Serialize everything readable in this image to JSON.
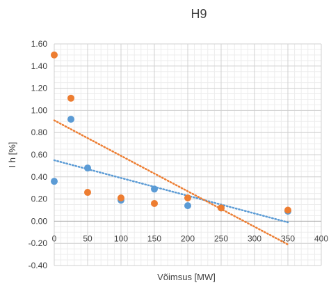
{
  "chart_data": {
    "type": "scatter",
    "title": "H9",
    "xlabel": "Võimsus [MW]",
    "ylabel": "I h [%]",
    "xlim": [
      0,
      400
    ],
    "ylim": [
      -0.4,
      1.6
    ],
    "x_ticks": [
      0,
      50,
      100,
      150,
      200,
      250,
      300,
      350,
      400
    ],
    "x_tick_labels": [
      "0",
      "50",
      "100",
      "150",
      "200",
      "250",
      "300",
      "350",
      "400"
    ],
    "y_ticks": [
      -0.4,
      -0.2,
      0,
      0.2,
      0.4,
      0.6,
      0.8,
      1.0,
      1.2,
      1.4,
      1.6
    ],
    "y_tick_labels": [
      "-0.40",
      "-0.20",
      "0.00",
      "0.20",
      "0.40",
      "0.60",
      "0.80",
      "1.00",
      "1.20",
      "1.40",
      "1.60"
    ],
    "grid": true,
    "series": [
      {
        "color": "#5B9BD5",
        "points": [
          [
            0,
            0.36
          ],
          [
            25,
            0.92
          ],
          [
            50,
            0.48
          ],
          [
            100,
            0.19
          ],
          [
            150,
            0.29
          ],
          [
            200,
            0.14
          ],
          [
            250,
            0.12
          ],
          [
            350,
            0.09
          ]
        ],
        "trendline": {
          "style": "dotted",
          "from": [
            0,
            0.55
          ],
          "to": [
            350,
            -0.01
          ]
        }
      },
      {
        "color": "#ED7D31",
        "points": [
          [
            0,
            1.5
          ],
          [
            25,
            1.11
          ],
          [
            50,
            0.26
          ],
          [
            100,
            0.21
          ],
          [
            150,
            0.16
          ],
          [
            200,
            0.21
          ],
          [
            250,
            0.12
          ],
          [
            350,
            0.1
          ]
        ],
        "trendline": {
          "style": "dotted",
          "from": [
            0,
            0.91
          ],
          "to": [
            350,
            -0.21
          ]
        }
      }
    ]
  }
}
